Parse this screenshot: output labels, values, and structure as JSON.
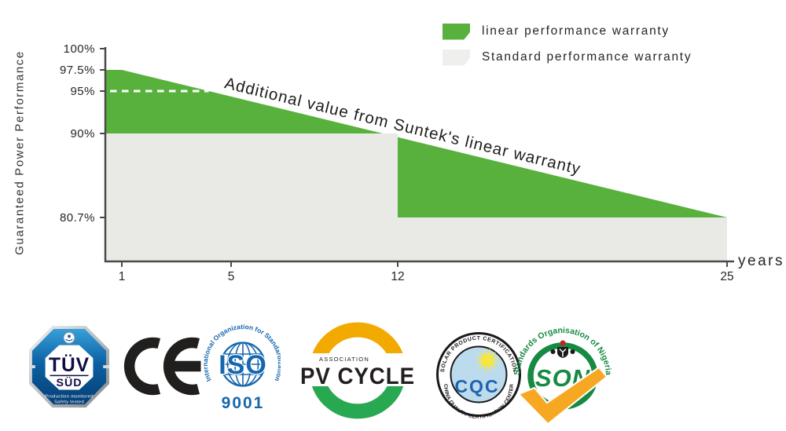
{
  "chart": {
    "y_axis_title": "Guaranteed Power Performance",
    "x_axis_label": "years",
    "annotation": "Additional value from Suntek's linear warranty",
    "legend": [
      {
        "label": "linear performance warranty",
        "color": "#57B13C"
      },
      {
        "label": "Standard performance warranty",
        "color": "#EFEFED"
      }
    ]
  },
  "chart_data": {
    "type": "area",
    "title": "",
    "xlabel": "years",
    "ylabel": "Guaranteed Power Performance",
    "x_ticks": [
      {
        "year": 1,
        "label": "1"
      },
      {
        "year": 5,
        "label": "5"
      },
      {
        "year": 12,
        "label": "12"
      },
      {
        "year": 25,
        "label": "25"
      }
    ],
    "y_ticks": [
      {
        "value": 100,
        "label": "100%"
      },
      {
        "value": 97.5,
        "label": "97.5%"
      },
      {
        "value": 95,
        "label": "95%"
      },
      {
        "value": 90,
        "label": "90%"
      },
      {
        "value": 80.7,
        "label": "80.7%"
      }
    ],
    "series": [
      {
        "name": "linear performance warranty",
        "color": "#57B13C",
        "points": [
          [
            1,
            97.5
          ],
          [
            25,
            80.7
          ]
        ],
        "shape": "linear-decline"
      },
      {
        "name": "Standard performance warranty",
        "color": "#E9E9E6",
        "points": [
          [
            1,
            90
          ],
          [
            12,
            90
          ],
          [
            12,
            80.7
          ],
          [
            25,
            80.7
          ]
        ],
        "shape": "step"
      }
    ],
    "reference_dashed_line": {
      "value": 95,
      "color": "#FFFFFF"
    },
    "annotation": "Additional value from Suntek's linear warranty",
    "legend_position": "top-right",
    "grid": false
  },
  "logos": {
    "tuv": {
      "line1": "TÜV",
      "line2": "SÜD",
      "line3": "Production monitored",
      "line4": "Safety tested"
    },
    "ce": {
      "label": "CE"
    },
    "iso": {
      "ring_text": "International Organization for Standardization",
      "center": "ISO",
      "number": "9001"
    },
    "pvcycle": {
      "small": "ASSOCIATION",
      "big": "PV CYCLE"
    },
    "cqc": {
      "top": "SOLAR PRODUCT CERTIFICATION",
      "bottom": "CHINA QUALITY CERTIFICATION CENTER",
      "center": "CQC"
    },
    "son": {
      "ring_text": "Standards Organisation of Nigeria",
      "center": "SON"
    }
  }
}
